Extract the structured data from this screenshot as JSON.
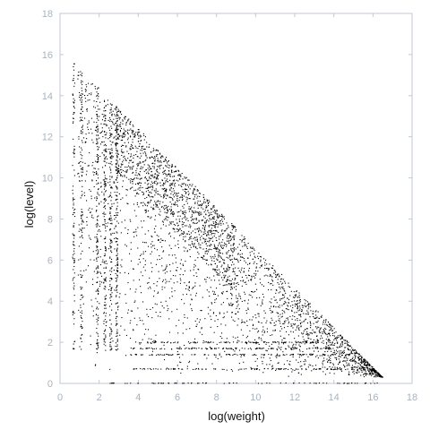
{
  "chart_data": {
    "type": "scatter",
    "title": "",
    "xlabel": "log(weight)",
    "ylabel": "log(level)",
    "xlim": [
      0,
      18
    ],
    "ylim": [
      0,
      18
    ],
    "x_ticks": [
      0,
      2,
      4,
      6,
      8,
      10,
      12,
      14,
      16,
      18
    ],
    "y_ticks": [
      0,
      2,
      4,
      6,
      8,
      10,
      12,
      14,
      16,
      18
    ],
    "grid": false,
    "legend": "none",
    "series": [
      {
        "points_description_x_range": [
          0.7,
          17
        ],
        "points_description_y_range": [
          0,
          16.2
        ],
        "boundary": "points lie below the line y = 16.3 - 0.97x (approx.)",
        "dense_columns_x": [
          0.7,
          1.1,
          1.9,
          2.3,
          2.6,
          2.9
        ],
        "dense_rows_y": [
          0,
          0.7,
          1.4,
          1.7,
          2.0
        ]
      }
    ],
    "colors": {
      "point": "#000000",
      "axis": "#c0c8d0",
      "tick_label": "#a9b3be"
    }
  }
}
